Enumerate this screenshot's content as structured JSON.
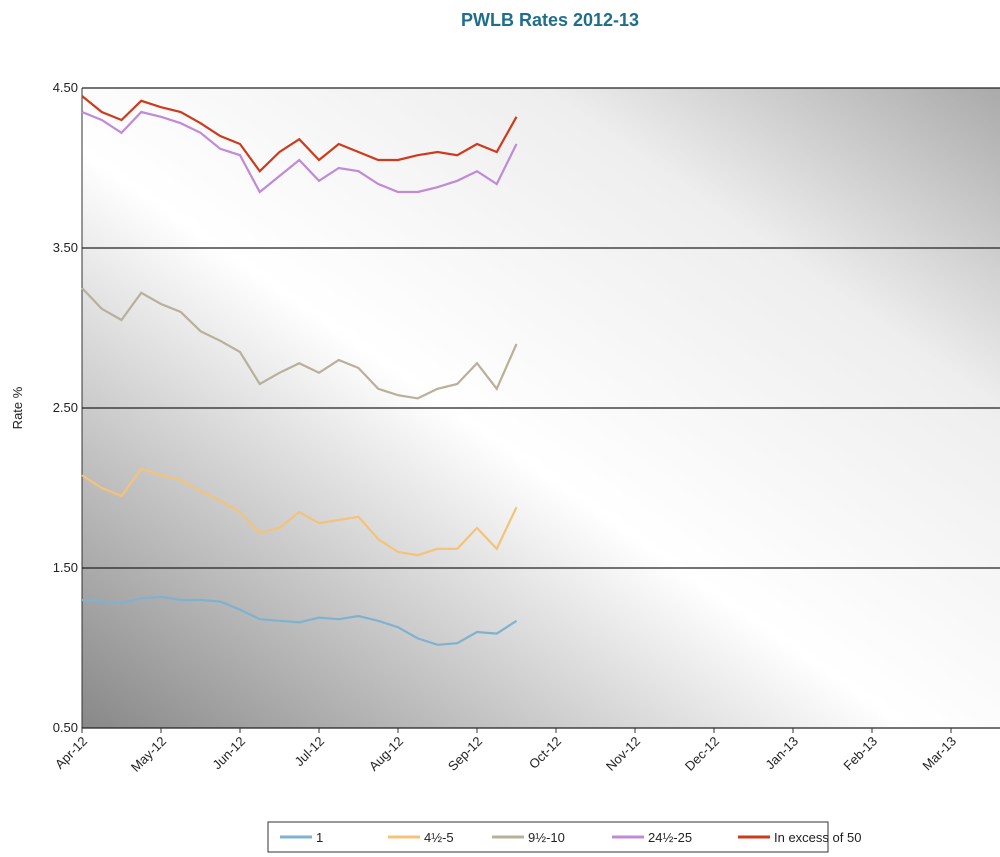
{
  "chart_data": {
    "type": "line",
    "title": "PWLB Rates 2012-13",
    "y_label": "Rate %",
    "categories": [
      "Apr-12",
      null,
      null,
      null,
      "May-12",
      null,
      null,
      null,
      "Jun-12",
      null,
      null,
      null,
      "Jul-12",
      null,
      null,
      null,
      "Aug-12",
      null,
      null,
      null,
      "Sep-12",
      null,
      null,
      null,
      "Oct-12",
      null,
      null,
      null,
      "Nov-12",
      null,
      null,
      null,
      "Dec-12",
      null,
      null,
      null,
      "Jan-13",
      null,
      null,
      null,
      "Feb-13",
      null,
      null,
      null,
      "Mar-13",
      null,
      null,
      null
    ],
    "series": [
      {
        "name": "1",
        "color": "#7fb2d0",
        "values": [
          1.3,
          1.29,
          1.28,
          1.31,
          1.32,
          1.3,
          1.3,
          1.29,
          1.24,
          1.18,
          1.17,
          1.16,
          1.19,
          1.18,
          1.2,
          1.17,
          1.13,
          1.06,
          1.02,
          1.03,
          1.1,
          1.09,
          1.17,
          null,
          null,
          null,
          null,
          null,
          null,
          null,
          null,
          null,
          null,
          null,
          null,
          null,
          null,
          null,
          null,
          null,
          null,
          null,
          null,
          null,
          null,
          null,
          null,
          null
        ]
      },
      {
        "name": "4½-5",
        "color": "#f5c27a",
        "values": [
          2.08,
          2.0,
          1.95,
          2.12,
          2.08,
          2.05,
          1.98,
          1.92,
          1.85,
          1.72,
          1.75,
          1.85,
          1.78,
          1.8,
          1.82,
          1.68,
          1.6,
          1.58,
          1.62,
          1.62,
          1.75,
          1.62,
          1.88,
          null,
          null,
          null,
          null,
          null,
          null,
          null,
          null,
          null,
          null,
          null,
          null,
          null,
          null,
          null,
          null,
          null,
          null,
          null,
          null,
          null,
          null,
          null,
          null,
          null
        ]
      },
      {
        "name": "9½-10",
        "color": "#b8b09a",
        "values": [
          3.25,
          3.12,
          3.05,
          3.22,
          3.15,
          3.1,
          2.98,
          2.92,
          2.85,
          2.65,
          2.72,
          2.78,
          2.72,
          2.8,
          2.75,
          2.62,
          2.58,
          2.56,
          2.62,
          2.65,
          2.78,
          2.62,
          2.9,
          null,
          null,
          null,
          null,
          null,
          null,
          null,
          null,
          null,
          null,
          null,
          null,
          null,
          null,
          null,
          null,
          null,
          null,
          null,
          null,
          null,
          null,
          null,
          null,
          null
        ]
      },
      {
        "name": "24½-25",
        "color": "#c08ad8",
        "values": [
          4.35,
          4.3,
          4.22,
          4.35,
          4.32,
          4.28,
          4.22,
          4.12,
          4.08,
          3.85,
          3.95,
          4.05,
          3.92,
          4.0,
          3.98,
          3.9,
          3.85,
          3.85,
          3.88,
          3.92,
          3.98,
          3.9,
          4.15,
          null,
          null,
          null,
          null,
          null,
          null,
          null,
          null,
          null,
          null,
          null,
          null,
          null,
          null,
          null,
          null,
          null,
          null,
          null,
          null,
          null,
          null,
          null,
          null,
          null
        ]
      },
      {
        "name": "In excess of 50",
        "color": "#cc3b1e",
        "values": [
          4.45,
          4.35,
          4.3,
          4.42,
          4.38,
          4.35,
          4.28,
          4.2,
          4.15,
          3.98,
          4.1,
          4.18,
          4.05,
          4.15,
          4.1,
          4.05,
          4.05,
          4.08,
          4.1,
          4.08,
          4.15,
          4.1,
          4.32,
          null,
          null,
          null,
          null,
          null,
          null,
          null,
          null,
          null,
          null,
          null,
          null,
          null,
          null,
          null,
          null,
          null,
          null,
          null,
          null,
          null,
          null,
          null,
          null,
          null
        ]
      }
    ],
    "ylim": [
      0.5,
      4.5
    ],
    "yticks": [
      {
        "value": 0.5,
        "label": "0.50"
      },
      {
        "value": 1.5,
        "label": "1.50"
      },
      {
        "value": 2.5,
        "label": "2.50"
      },
      {
        "value": 3.5,
        "label": "3.50"
      },
      {
        "value": 4.5,
        "label": "4.50"
      }
    ],
    "grid": true
  }
}
